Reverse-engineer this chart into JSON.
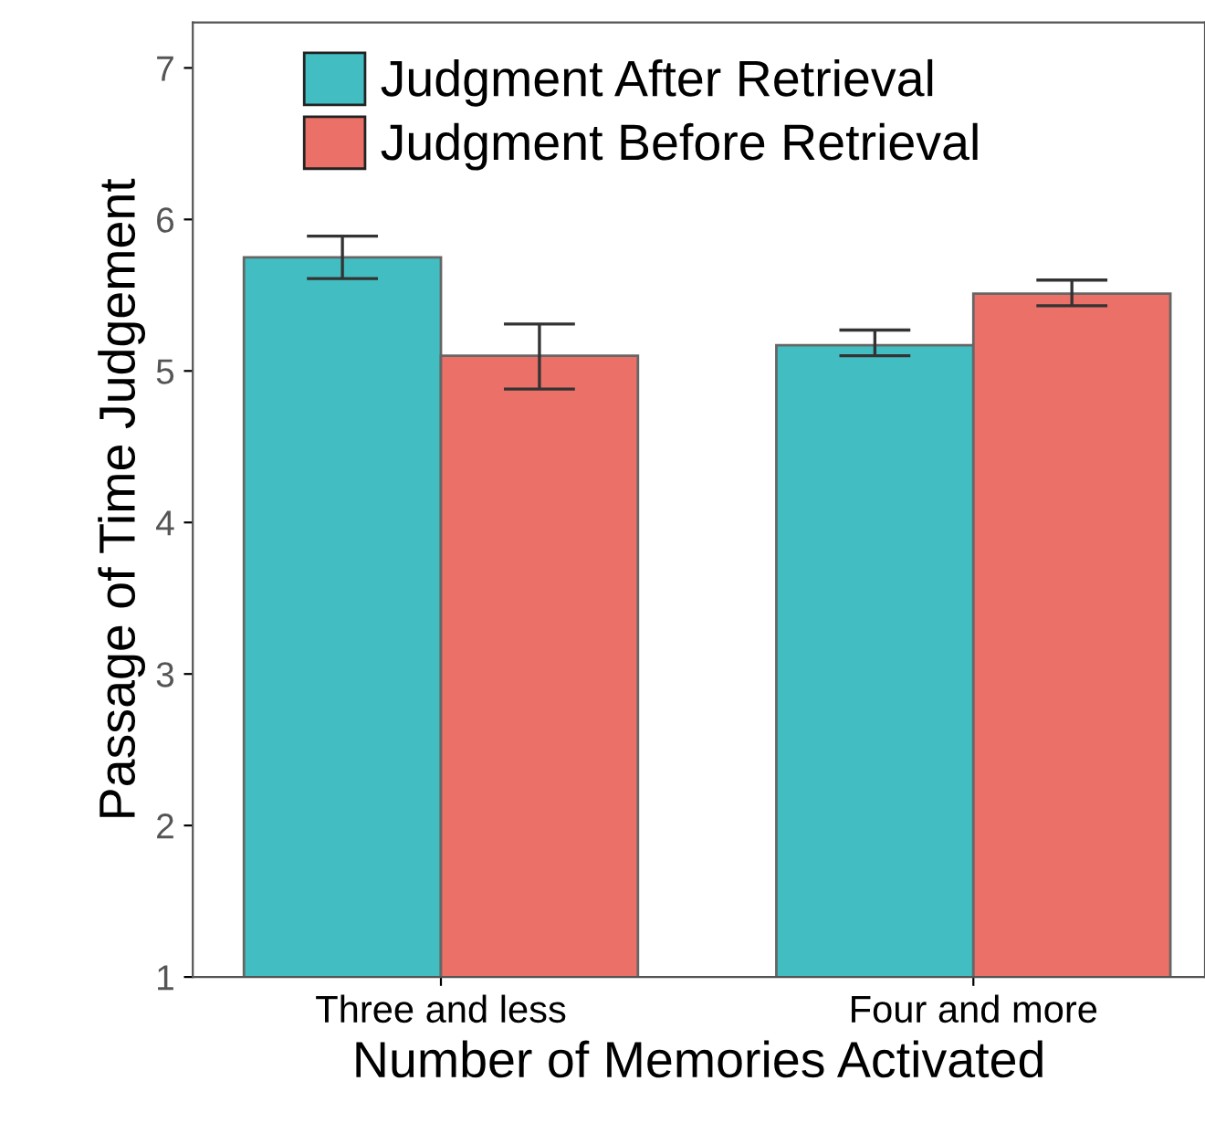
{
  "chart_data": {
    "type": "bar",
    "xlabel": "Number of Memories Activated",
    "ylabel": "Passage of Time Judgement",
    "categories": [
      "Three and less",
      "Four and more"
    ],
    "series": [
      {
        "name": "Judgment After Retrieval",
        "color": "#42bec3",
        "values": [
          5.75,
          5.17
        ],
        "errors": [
          [
            5.61,
            5.89
          ],
          [
            5.1,
            5.27
          ]
        ]
      },
      {
        "name": "Judgment Before Retrieval",
        "color": "#eb7068",
        "values": [
          5.1,
          5.51
        ],
        "errors": [
          [
            4.88,
            5.31
          ],
          [
            5.43,
            5.6
          ]
        ]
      }
    ],
    "ylim": [
      1,
      7.3
    ],
    "yticks": [
      1,
      2,
      3,
      4,
      5,
      6,
      7
    ],
    "grid": false,
    "legend": "top left"
  }
}
